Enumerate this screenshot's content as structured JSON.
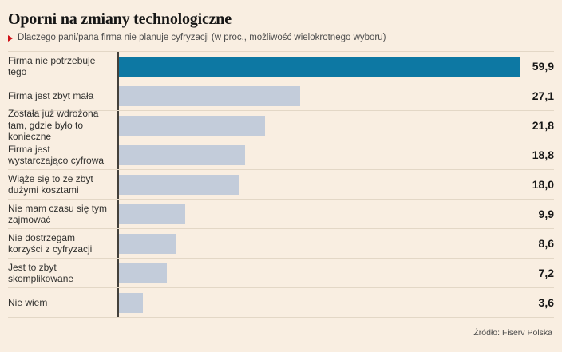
{
  "header": {
    "title": "Oporni na zmiany technologiczne",
    "subtitle": "Dlaczego pani/pana firma nie planuje cyfryzacji (w proc., możliwość wielokrotnego wyboru)"
  },
  "footer": {
    "source": "Źródło: Fiserv Polska"
  },
  "colors": {
    "background": "#f9eee1",
    "bar_accent": "#0d78a3",
    "bar_default": "#c3ccda",
    "separator": "#e3d7c6",
    "axis": "#44403a",
    "subtitle_marker": "#cf1118"
  },
  "chart_data": {
    "type": "bar",
    "orientation": "horizontal",
    "title": "Oporni na zmiany technologiczne",
    "subtitle": "Dlaczego pani/pana firma nie planuje cyfryzacji (w proc., możliwość wielokrotnego wyboru)",
    "unit": "proc.",
    "xlabel": "",
    "ylabel": "",
    "xlim": [
      0,
      60
    ],
    "grid": false,
    "legend": false,
    "highlight_index": 0,
    "categories": [
      "Firma nie potrzebuje tego",
      "Firma jest zbyt mała",
      "Została już wdrożona tam, gdzie było to konieczne",
      "Firma jest wystarczająco cyfrowa",
      "Wiąże się to ze zbyt dużymi kosztami",
      "Nie mam czasu się tym zajmować",
      "Nie dostrzegam korzyści z cyfryzacji",
      "Jest to zbyt skomplikowane",
      "Nie wiem"
    ],
    "values": [
      59.9,
      27.1,
      21.8,
      18.8,
      18.0,
      9.9,
      8.6,
      7.2,
      3.6
    ],
    "value_labels": [
      "59,9",
      "27,1",
      "21,8",
      "18,8",
      "18,0",
      "9,9",
      "8,6",
      "7,2",
      "3,6"
    ],
    "source": "Źródło: Fiserv Polska"
  }
}
